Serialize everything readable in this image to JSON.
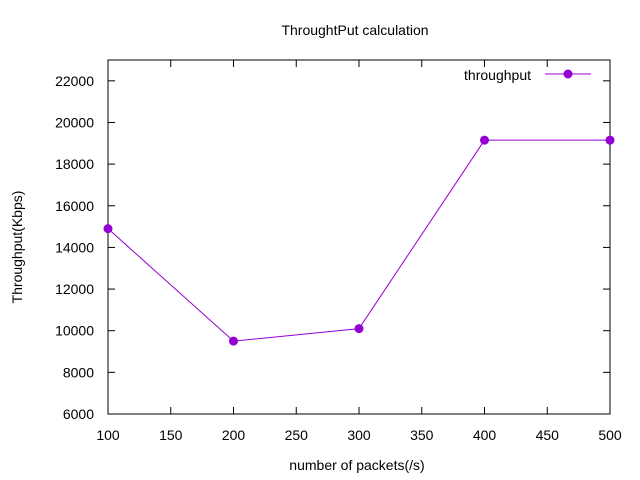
{
  "chart_data": {
    "type": "line",
    "title": "ThroughtPut calculation",
    "xlabel": "number of packets(/s)",
    "ylabel": "Throughput(Kbps)",
    "xlim": [
      100,
      500
    ],
    "ylim": [
      6000,
      23000
    ],
    "xticks": [
      100,
      150,
      200,
      250,
      300,
      350,
      400,
      450,
      500
    ],
    "yticks": [
      6000,
      8000,
      10000,
      12000,
      14000,
      16000,
      18000,
      20000,
      22000
    ],
    "grid": false,
    "legend_position": "top-right",
    "series": [
      {
        "name": "throughput",
        "color": "#9400d3",
        "marker": "circle",
        "x": [
          100,
          200,
          300,
          400,
          500
        ],
        "y": [
          14900,
          9500,
          10100,
          19150,
          19150
        ]
      }
    ]
  }
}
